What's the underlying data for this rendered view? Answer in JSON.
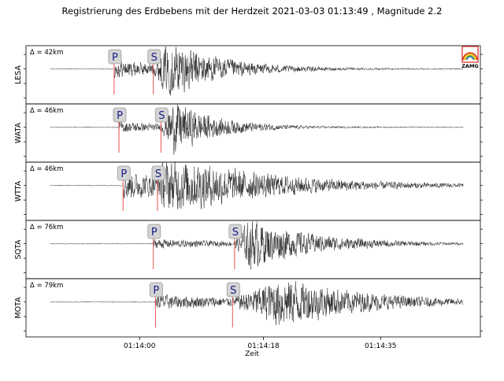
{
  "chart_data": {
    "type": "line",
    "title": "Registrierung des Erdbebens mit der Herdzeit 2021-03-03 01:13:49 , Magnitude 2.2",
    "xlabel": "Zeit",
    "x_ticks": [
      "01:14:00",
      "01:14:18",
      "01:14:35"
    ],
    "x_tick_seconds": [
      11,
      29,
      46
    ],
    "x_range_seconds": [
      -5.5,
      60.5
    ],
    "trace_start_seconds": -2,
    "trace_end_seconds": 58,
    "grid": false,
    "logo": {
      "text": "ZAMG",
      "colors": [
        "#d8231b",
        "#f29b1d",
        "#f5d41a",
        "#4ea84b",
        "#2f6db5"
      ]
    },
    "trace_color": "#222222",
    "pick_line_color": "#e8403c",
    "pick_label_fill": "#d4d4d4",
    "pick_label_color": "#1a1a8c",
    "series": [
      {
        "name": "LESA",
        "distance": "Δ = 42km",
        "p_label": "P",
        "s_label": "S",
        "p_time": 7.3,
        "s_time": 13.0,
        "onset_amp": 0.35,
        "peak_amp": 1.0,
        "peak_time": 15.5,
        "decay_seconds": 7,
        "noise_amp": 0.02
      },
      {
        "name": "WATA",
        "distance": "Δ = 46km",
        "p_label": "P",
        "s_label": "S",
        "p_time": 8.0,
        "s_time": 14.1,
        "onset_amp": 0.22,
        "peak_amp": 0.95,
        "peak_time": 16.0,
        "decay_seconds": 6,
        "noise_amp": 0.02
      },
      {
        "name": "WTTA",
        "distance": "Δ = 46km",
        "p_label": "P",
        "s_label": "S",
        "p_time": 8.6,
        "s_time": 13.6,
        "onset_amp": 0.55,
        "peak_amp": 0.9,
        "peak_time": 15.0,
        "decay_seconds": 12,
        "noise_amp": 0.02
      },
      {
        "name": "SQTA",
        "distance": "Δ = 76km",
        "p_label": "P",
        "s_label": "S",
        "p_time": 13.0,
        "s_time": 24.8,
        "onset_amp": 0.18,
        "peak_amp": 0.95,
        "peak_time": 27.0,
        "decay_seconds": 9,
        "noise_amp": 0.02
      },
      {
        "name": "MOTA",
        "distance": "Δ = 79km",
        "p_label": "P",
        "s_label": "S",
        "p_time": 13.3,
        "s_time": 24.5,
        "onset_amp": 0.3,
        "peak_amp": 0.95,
        "peak_time": 32.0,
        "decay_seconds": 11,
        "noise_amp": 0.02
      }
    ]
  }
}
